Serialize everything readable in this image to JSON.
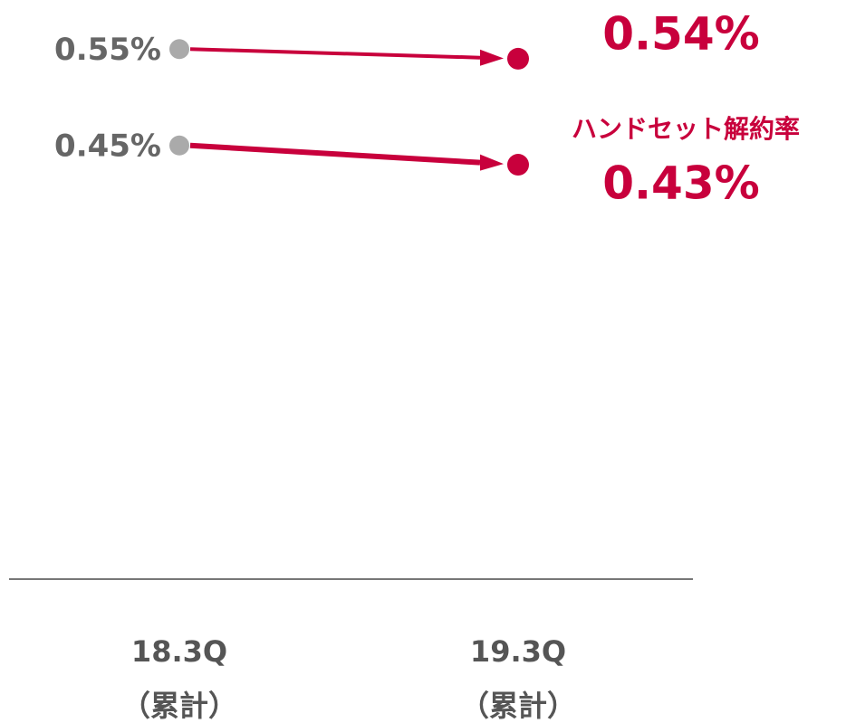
{
  "chart_data": {
    "type": "line",
    "categories": [
      "18.3Q\n（累計）",
      "19.3Q\n（累計）"
    ],
    "series": [
      {
        "color": "#c8003c",
        "values": [
          0.55,
          0.54
        ],
        "value_labels": [
          "0.55%",
          "0.54%"
        ]
      },
      {
        "name": "ハンドセット解約率",
        "color": "#c8003c",
        "values": [
          0.45,
          0.43
        ],
        "value_labels": [
          "0.45%",
          "0.43%"
        ]
      }
    ],
    "ylim": [
      0,
      0.6
    ]
  }
}
